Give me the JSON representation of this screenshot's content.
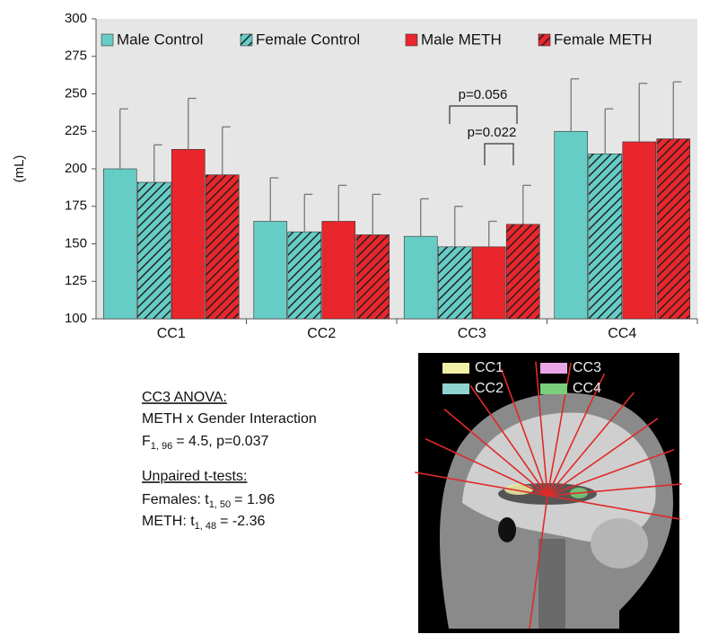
{
  "chart_data": {
    "type": "bar",
    "y_label": "(mL)",
    "categories": [
      "CC1",
      "CC2",
      "CC3",
      "CC4"
    ],
    "ylim": [
      100,
      300
    ],
    "yticks": [
      100,
      125,
      150,
      175,
      200,
      225,
      250,
      275,
      300
    ],
    "series": [
      {
        "name": "Male Control",
        "color": "#66cdc6",
        "hatch": false,
        "values": [
          200,
          165,
          155,
          225
        ],
        "errors": [
          40,
          29,
          25,
          35
        ]
      },
      {
        "name": "Female Control",
        "color": "#66cdc6",
        "hatch": true,
        "values": [
          191,
          158,
          148,
          210
        ],
        "errors": [
          25,
          25,
          27,
          30
        ]
      },
      {
        "name": "Male METH",
        "color": "#e8262c",
        "hatch": false,
        "values": [
          213,
          165,
          148,
          218
        ],
        "errors": [
          34,
          24,
          17,
          39
        ]
      },
      {
        "name": "Female METH",
        "color": "#e8262c",
        "hatch": true,
        "values": [
          196,
          156,
          163,
          220
        ],
        "errors": [
          32,
          27,
          26,
          38
        ]
      }
    ],
    "annotations": [
      "p=0.056",
      "p=0.022"
    ]
  },
  "stats": {
    "anova_title": "CC3 ANOVA:",
    "anova_line": "METH x Gender Interaction",
    "anova_stat": {
      "symbol": "F",
      "sub": "1, 96",
      "rest": "= 4.5, p=0.037"
    },
    "ttest_title": "Unpaired t-tests:",
    "ttests": [
      {
        "symbol": "Females: t",
        "sub": "1, 50",
        "rest": "= 1.96"
      },
      {
        "symbol": "METH: t",
        "sub": "1, 48",
        "rest": "= -2.36"
      }
    ]
  },
  "inset": {
    "legend": [
      {
        "label": "CC1",
        "color": "#f2f0a6"
      },
      {
        "label": "CC3",
        "color": "#e9a6e6"
      },
      {
        "label": "CC2",
        "color": "#8fd3cf"
      },
      {
        "label": "CC4",
        "color": "#7ad07a"
      }
    ]
  }
}
